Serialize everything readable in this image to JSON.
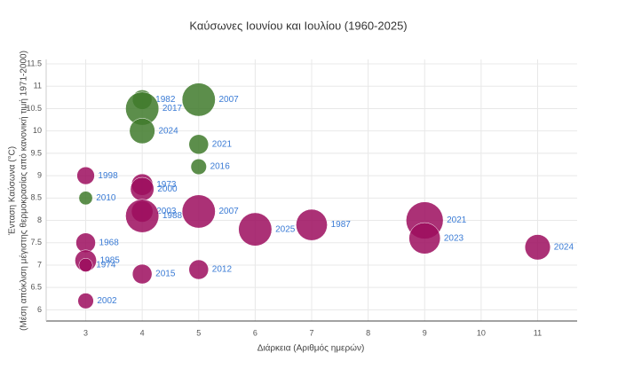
{
  "chart_data": {
    "type": "bubble",
    "title": "Καύσωνες Ιουνίου και Ιουλίου (1960-2025)",
    "x_label": "Διάρκεια (Αριθμός ημερών)",
    "y_label": [
      "Ένταση Καύσωνα (°C)",
      "(Μέση απόκλιση μέγιστης θερμοκρασίας από κανονική τιμή 1971-2000)"
    ],
    "xlim": [
      2.3,
      11.7
    ],
    "xticks": [
      3,
      4,
      5,
      6,
      7,
      8,
      9,
      10,
      11
    ],
    "ylim": [
      5.75,
      11.6
    ],
    "yticks": [
      6,
      6.5,
      7,
      7.5,
      8,
      8.5,
      9,
      9.5,
      10,
      10.5,
      11,
      11.5
    ],
    "grid": true,
    "series": [
      {
        "color": "#3f7a2b",
        "x": [
          4,
          4,
          4,
          5,
          5,
          5,
          3
        ],
        "values": [
          10.7,
          10.5,
          10.0,
          10.7,
          9.7,
          9.2,
          8.5
        ],
        "sizes": [
          10,
          17,
          13,
          17,
          10,
          8,
          7
        ],
        "labels": [
          "1982",
          "2017",
          "2024",
          "2007",
          "2021",
          "2016",
          "2010"
        ]
      },
      {
        "color": "#9c0d5e",
        "x": [
          3,
          4,
          4,
          4,
          4,
          5,
          3,
          3,
          3,
          4,
          5,
          3,
          6,
          7,
          9,
          9,
          11
        ],
        "values": [
          9.0,
          8.8,
          8.7,
          8.2,
          8.1,
          8.2,
          7.5,
          7.1,
          7.0,
          6.8,
          6.9,
          6.2,
          7.8,
          7.9,
          8.0,
          7.6,
          7.4
        ],
        "sizes": [
          9,
          11,
          12,
          11,
          17,
          17,
          10,
          11,
          7,
          10,
          10,
          8,
          17,
          16,
          19,
          16,
          13
        ],
        "labels": [
          "1998",
          "1973",
          "2000",
          "2003",
          "1988",
          "2007",
          "1968",
          "1985",
          "1974",
          "2015",
          "2012",
          "2002",
          "2025",
          "1987",
          "2021",
          "2023",
          "2024"
        ]
      }
    ]
  }
}
